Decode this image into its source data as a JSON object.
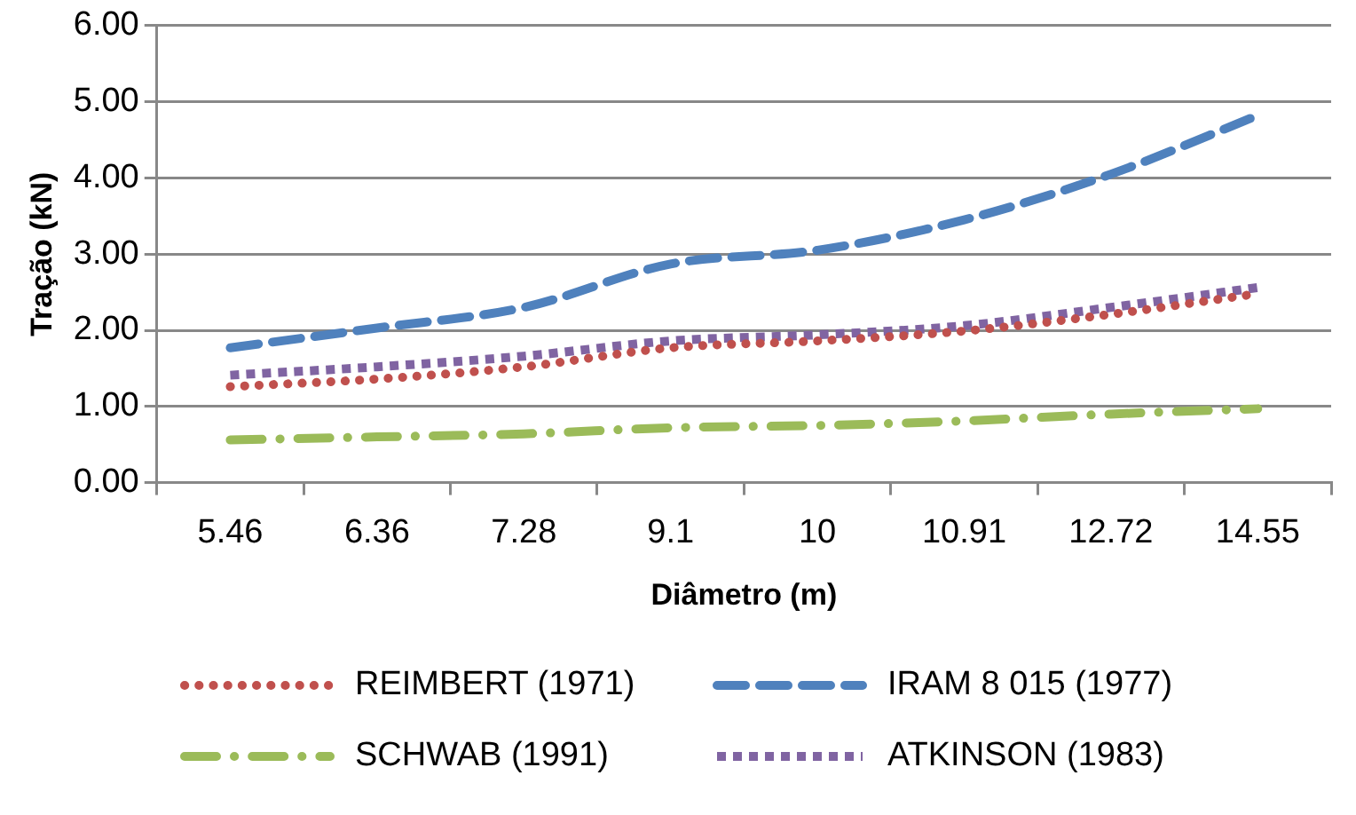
{
  "chart_data": {
    "type": "line",
    "xlabel": "Diâmetro (m)",
    "ylabel": "Tração (kN)",
    "categories": [
      "5.46",
      "6.36",
      "7.28",
      "9.1",
      "10",
      "10.91",
      "12.72",
      "14.55"
    ],
    "series": [
      {
        "name": "REIMBERT (1971)",
        "color": "#c0504d",
        "line_style": "dotted",
        "values": [
          1.26,
          1.36,
          1.52,
          1.77,
          1.86,
          1.99,
          2.21,
          2.48
        ]
      },
      {
        "name": "IRAM 8 015 (1977)",
        "color": "#4f81bd",
        "line_style": "dashed",
        "values": [
          1.77,
          2.03,
          2.3,
          2.87,
          3.05,
          3.45,
          4.05,
          4.82
        ]
      },
      {
        "name": "SCHWAB (1991)",
        "color": "#9bbb59",
        "line_style": "dashdot",
        "values": [
          0.56,
          0.6,
          0.64,
          0.72,
          0.75,
          0.81,
          0.9,
          0.97
        ]
      },
      {
        "name": "ATKINSON (1983)",
        "color": "#8064a2",
        "line_style": "dotted_square",
        "values": [
          1.41,
          1.52,
          1.66,
          1.86,
          1.94,
          2.06,
          2.3,
          2.56
        ]
      }
    ],
    "ylim": [
      0,
      6
    ],
    "yticks": [
      {
        "value": 0,
        "label": "0.00"
      },
      {
        "value": 1,
        "label": "1.00"
      },
      {
        "value": 2,
        "label": "2.00"
      },
      {
        "value": 3,
        "label": "3.00"
      },
      {
        "value": 4,
        "label": "4.00"
      },
      {
        "value": 5,
        "label": "5.00"
      },
      {
        "value": 6,
        "label": "6.00"
      }
    ],
    "grid": "y",
    "legend": "bottom",
    "marker": "none"
  }
}
